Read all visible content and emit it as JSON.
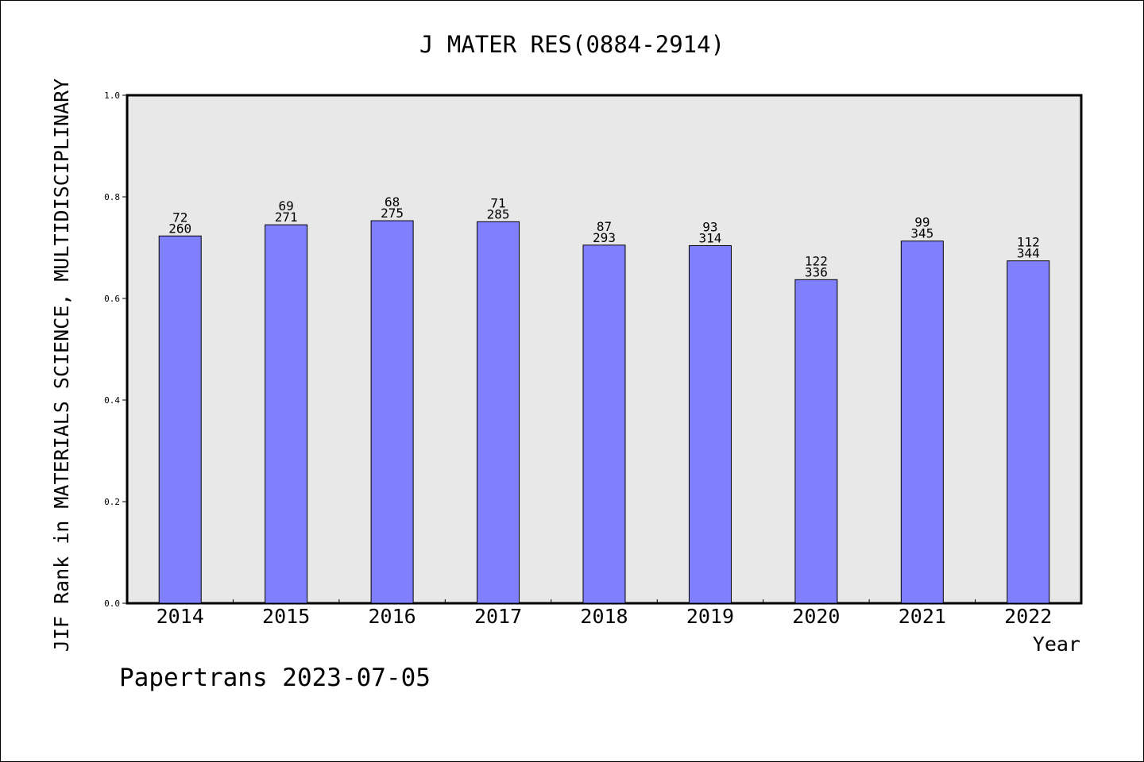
{
  "chart_data": {
    "type": "bar",
    "title": "J MATER RES(0884-2914)",
    "xlabel": "Year",
    "ylabel": "JIF Rank in MATERIALS SCIENCE, MULTIDISCIPLINARY",
    "categories": [
      "2014",
      "2015",
      "2016",
      "2017",
      "2018",
      "2019",
      "2020",
      "2021",
      "2022"
    ],
    "values": [
      0.723,
      0.745,
      0.753,
      0.751,
      0.705,
      0.704,
      0.637,
      0.713,
      0.674
    ],
    "rank_labels": [
      "72",
      "69",
      "68",
      "71",
      "87",
      "93",
      "122",
      "99",
      "112"
    ],
    "total_labels": [
      "260",
      "271",
      "275",
      "285",
      "293",
      "314",
      "336",
      "345",
      "344"
    ],
    "yticks": [
      "0.0",
      "0.2",
      "0.4",
      "0.6",
      "0.8",
      "1.0"
    ],
    "ylim": [
      0,
      1.0
    ],
    "grid": false,
    "legend": "none",
    "colors": {
      "bar": "#8080ff",
      "plot_bg": "#e8e8e8"
    }
  },
  "footer": "Papertrans 2023-07-05"
}
